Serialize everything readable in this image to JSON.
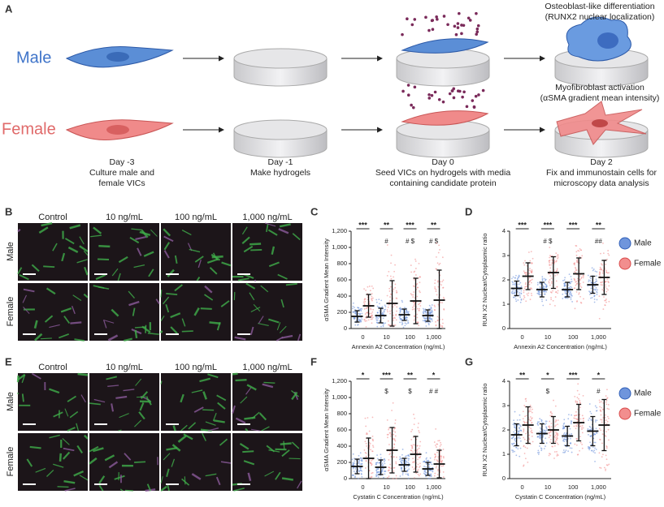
{
  "panel_labels": [
    "A",
    "B",
    "C",
    "D",
    "E",
    "F",
    "G"
  ],
  "workflow": {
    "sexes": [
      "Male",
      "Female"
    ],
    "steps": [
      {
        "day": "Day -3",
        "lines": [
          "Culture male and",
          "female VICs"
        ]
      },
      {
        "day": "Day -1",
        "lines": [
          "Make hydrogels"
        ]
      },
      {
        "day": "Day 0",
        "lines": [
          "Seed VICs on hydrogels with media",
          "containing candidate protein"
        ]
      },
      {
        "day": "Day 2",
        "lines": [
          "Fix and immunostain cells for",
          "microscopy data analysis"
        ]
      }
    ],
    "readouts": [
      {
        "lines": [
          "Osteoblast-like differentiation",
          "(RUNX2 nuclear localization)"
        ]
      },
      {
        "lines": [
          "Myofibroblast activation",
          "(αSMA gradient mean intensity)"
        ]
      }
    ]
  },
  "micrographs": [
    {
      "columns": [
        "Control",
        "10 ng/mL",
        "100 ng/mL",
        "1,000 ng/mL"
      ],
      "rows": [
        "Male",
        "Female"
      ]
    },
    {
      "columns": [
        "Control",
        "10 ng/mL",
        "100 ng/mL",
        "1,000 ng/mL"
      ],
      "rows": [
        "Male",
        "Female"
      ]
    }
  ],
  "chart_data": [
    {
      "type": "errorbar",
      "y_label": "αSMA Gradient Mean Intensity",
      "x_label": "Annexin A2 Concentration (ng/mL)",
      "categories": [
        "0",
        "10",
        "100",
        "1,000"
      ],
      "series": [
        {
          "name": "Male",
          "color": "#2f5fb8",
          "values": [
            150,
            160,
            170,
            160
          ],
          "errors": [
            70,
            90,
            70,
            70
          ]
        },
        {
          "name": "Female",
          "color": "#d94a4a",
          "values": [
            280,
            310,
            340,
            350
          ],
          "errors": [
            140,
            280,
            280,
            370
          ]
        }
      ],
      "ylim": [
        0,
        1200
      ],
      "yticks": [
        0,
        200,
        400,
        600,
        800,
        {
          "value": 1000,
          "label": "1,000"
        },
        {
          "value": 1200,
          "label": "1,200"
        }
      ],
      "significance": [
        "***",
        "**",
        "***",
        "**"
      ],
      "markers": [
        null,
        "#",
        "# $",
        "# $"
      ],
      "legend": false
    },
    {
      "type": "errorbar",
      "y_label": "RUN X2 Nuclear/Cytoplasmic ratio",
      "x_label": "Annexin A2 Concentration (ng/mL)",
      "categories": [
        "0",
        "10",
        "100",
        "1,000"
      ],
      "series": [
        {
          "name": "Male",
          "color": "#2f5fb8",
          "values": [
            1.65,
            1.6,
            1.6,
            1.8
          ],
          "errors": [
            0.3,
            0.3,
            0.3,
            0.35
          ]
        },
        {
          "name": "Female",
          "color": "#d94a4a",
          "values": [
            2.15,
            2.3,
            2.25,
            2.1
          ],
          "errors": [
            0.55,
            0.65,
            0.65,
            0.7
          ]
        }
      ],
      "ylim": [
        0,
        4
      ],
      "yticks": [
        0,
        1,
        2,
        3,
        4
      ],
      "significance": [
        "***",
        "***",
        "***",
        "**"
      ],
      "markers": [
        null,
        "# $",
        null,
        "##"
      ],
      "legend": true
    },
    {
      "type": "errorbar",
      "y_label": "αSMA Gradient Mean Intensity",
      "x_label": "Cystatin C Concentration (ng/mL)",
      "categories": [
        "0",
        "10",
        "100",
        "1,000"
      ],
      "series": [
        {
          "name": "Male",
          "color": "#2f5fb8",
          "values": [
            150,
            140,
            170,
            120
          ],
          "errors": [
            90,
            90,
            80,
            80
          ]
        },
        {
          "name": "Female",
          "color": "#d94a4a",
          "values": [
            250,
            350,
            300,
            180
          ],
          "errors": [
            250,
            280,
            220,
            170
          ]
        }
      ],
      "ylim": [
        0,
        1200
      ],
      "yticks": [
        0,
        200,
        400,
        600,
        800,
        {
          "value": 1000,
          "label": "1,000"
        },
        {
          "value": 1200,
          "label": "1,200"
        }
      ],
      "significance": [
        "*",
        "***",
        "**",
        "*"
      ],
      "markers": [
        null,
        "$",
        "$",
        "# #"
      ],
      "legend": false
    },
    {
      "type": "errorbar",
      "y_label": "RUN X2 Nuclear/Cytoplasmic ratio",
      "x_label": "Cystatin C Concentration (ng/mL)",
      "categories": [
        "0",
        "10",
        "100",
        "1,000"
      ],
      "series": [
        {
          "name": "Male",
          "color": "#2f5fb8",
          "values": [
            1.8,
            1.85,
            1.75,
            1.95
          ],
          "errors": [
            0.45,
            0.4,
            0.4,
            0.6
          ]
        },
        {
          "name": "Female",
          "color": "#d94a4a",
          "values": [
            2.2,
            2.0,
            2.3,
            2.2
          ],
          "errors": [
            0.75,
            0.55,
            0.75,
            1.05
          ]
        }
      ],
      "ylim": [
        0,
        4
      ],
      "yticks": [
        0,
        1,
        2,
        3,
        4
      ],
      "significance": [
        "**",
        "*",
        "***",
        "*"
      ],
      "markers": [
        null,
        "$",
        null,
        "#"
      ],
      "legend": true
    }
  ]
}
